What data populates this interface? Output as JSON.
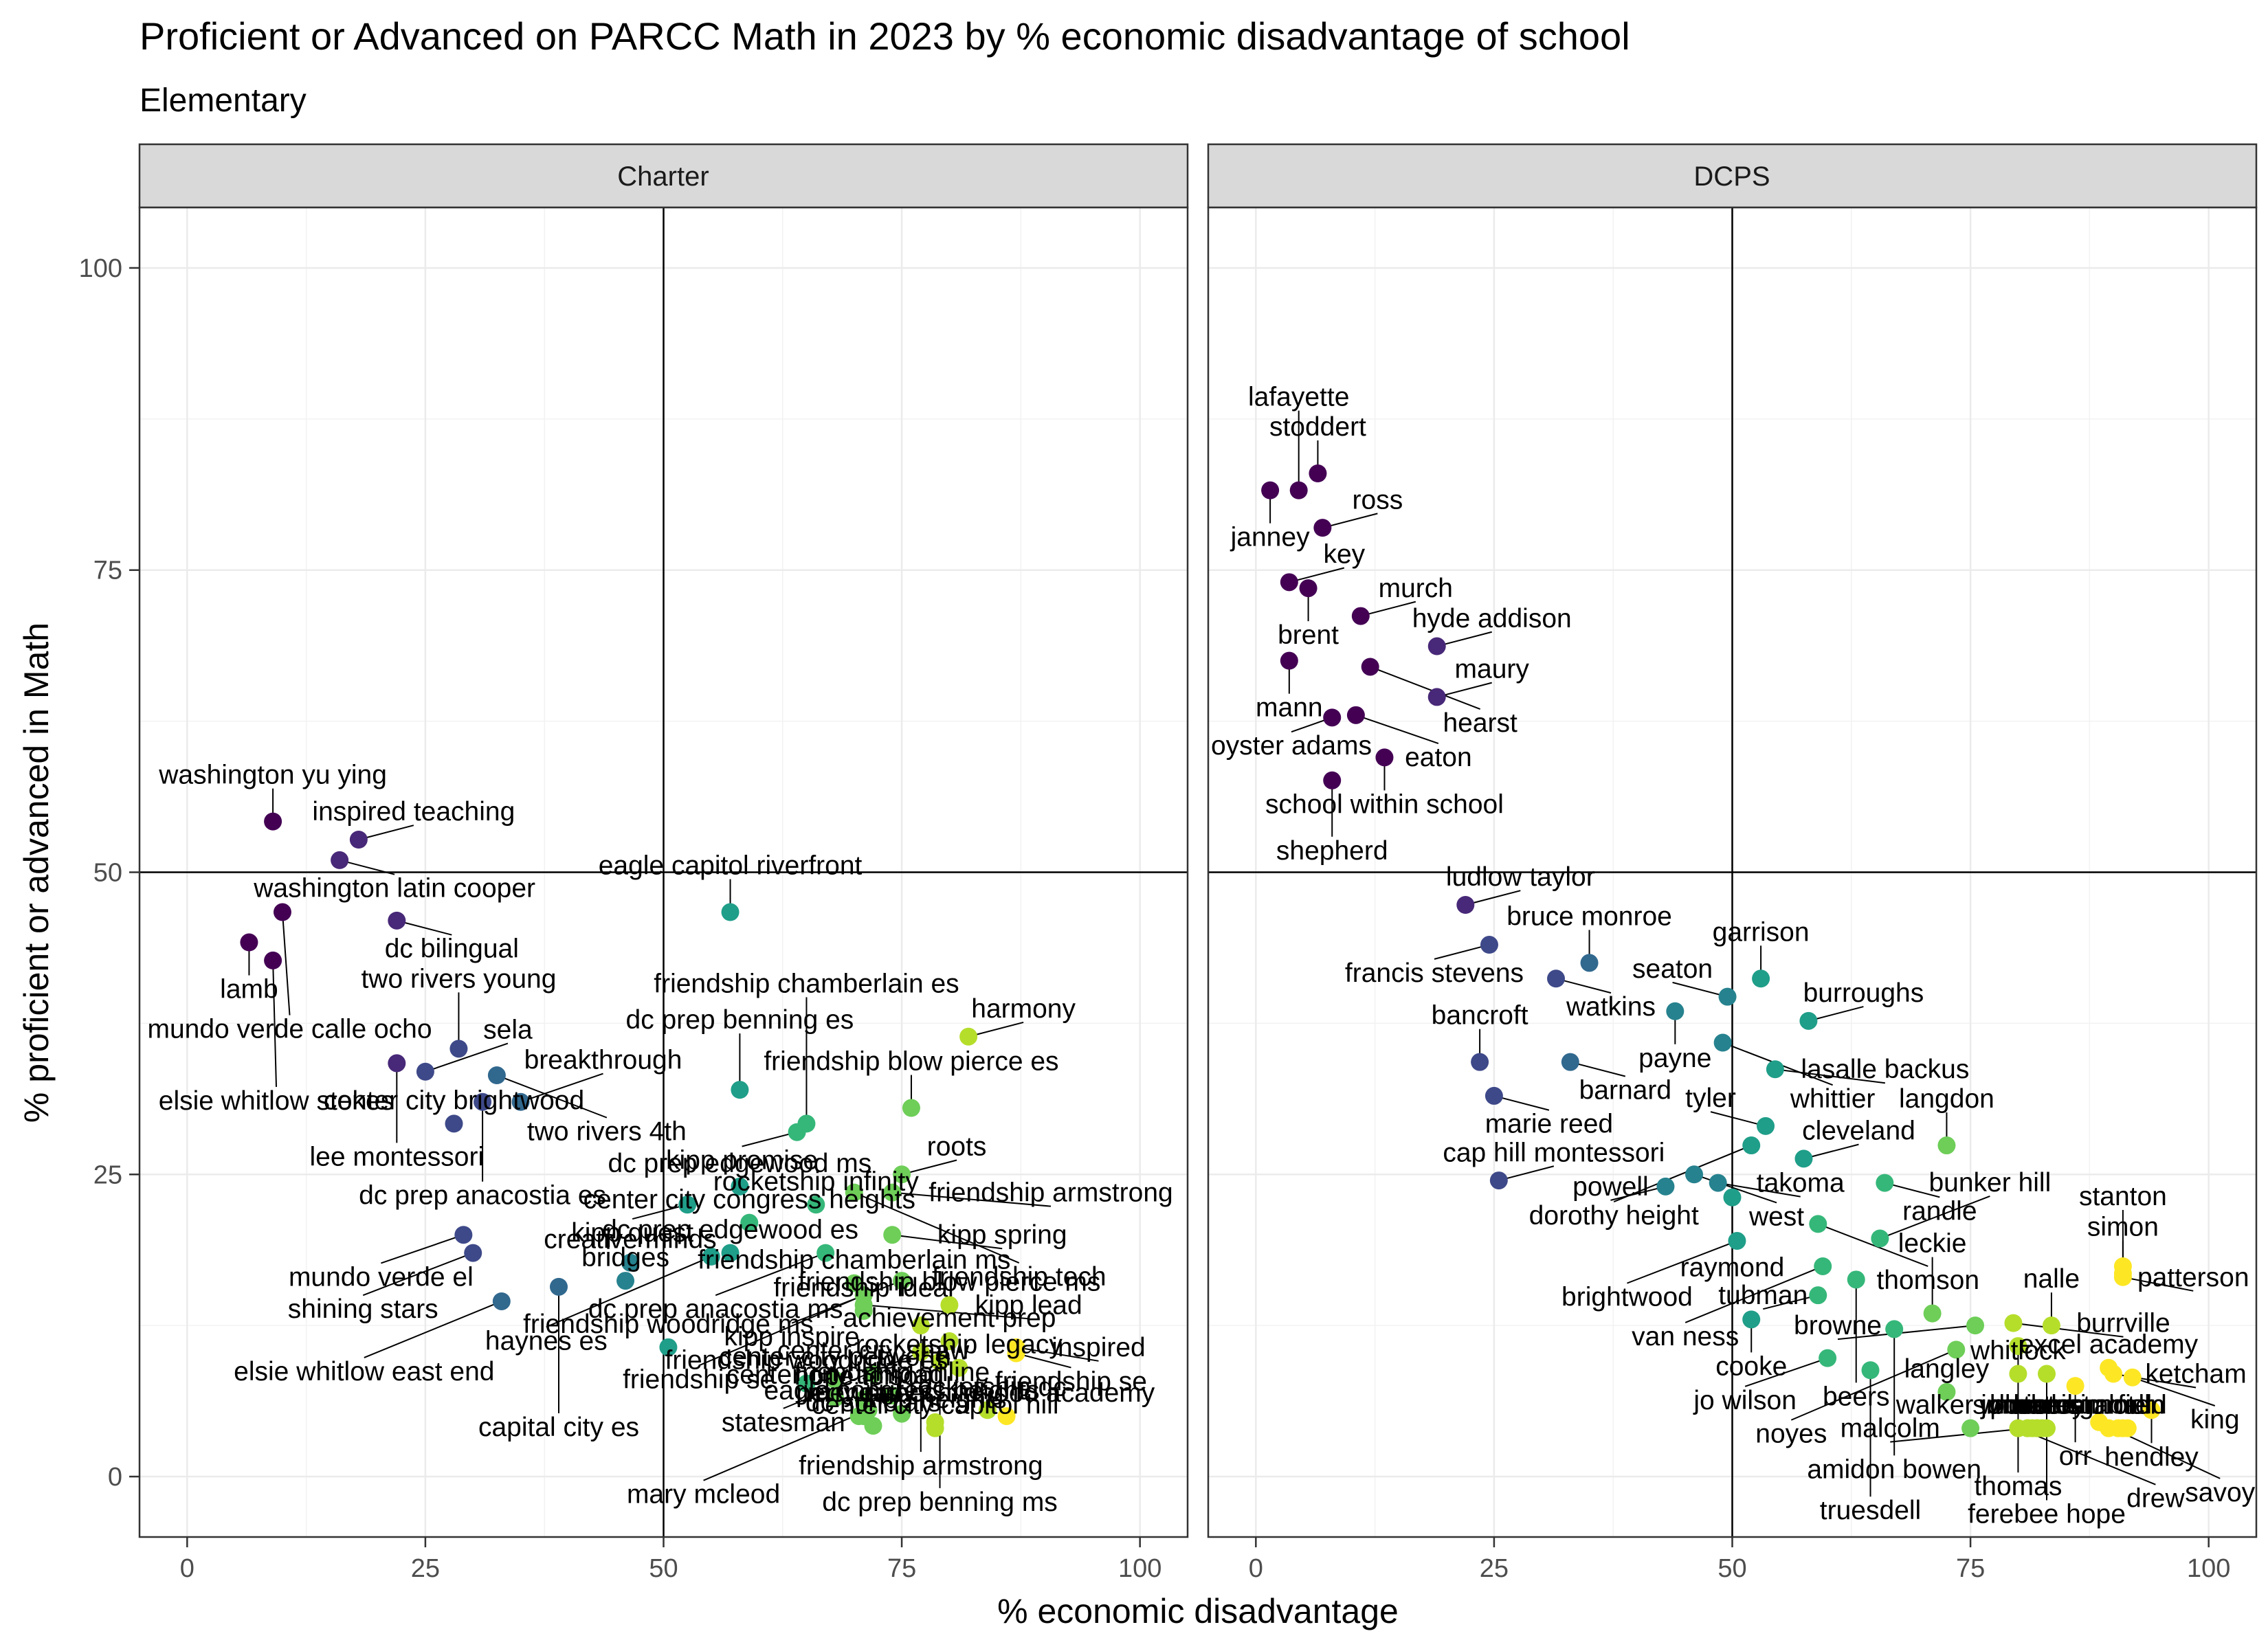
{
  "chart_data": {
    "type": "scatter",
    "title": "Proficient or Advanced on PARCC Math in 2023 by % economic disadvantage of school",
    "subtitle": "Elementary",
    "xlabel": "% economic disadvantage",
    "ylabel": "% proficient or advanced in Math",
    "xlim": [
      -5,
      105
    ],
    "ylim": [
      -5,
      105
    ],
    "xticks": [
      0,
      25,
      50,
      75,
      100
    ],
    "yticks": [
      0,
      25,
      50,
      75,
      100
    ],
    "reference_lines": {
      "x": 50,
      "y": 50
    },
    "grid": true,
    "color_scale": "viridis (by % economic disadvantage)",
    "facets": [
      {
        "name": "Charter",
        "points": [
          {
            "label": "washington yu ying",
            "x": 9,
            "y": 54.2
          },
          {
            "label": "inspired teaching",
            "x": 18,
            "y": 52.7
          },
          {
            "label": "washington latin cooper",
            "x": 16,
            "y": 51
          },
          {
            "label": "dc bilingual",
            "x": 22,
            "y": 46
          },
          {
            "label": "lamb",
            "x": 6.5,
            "y": 44.2
          },
          {
            "label": "mundo verde calle ocho",
            "x": 10,
            "y": 46.7
          },
          {
            "label": "elsie whitlow stokes",
            "x": 9,
            "y": 42.7
          },
          {
            "label": "two rivers young",
            "x": 28.5,
            "y": 35.4
          },
          {
            "label": "lee montessori",
            "x": 22,
            "y": 34.2
          },
          {
            "label": "sela",
            "x": 25,
            "y": 33.5
          },
          {
            "label": "two rivers 4th",
            "x": 32.5,
            "y": 33.2
          },
          {
            "label": "dc prep anacostia es",
            "x": 31,
            "y": 31
          },
          {
            "label": "breakthrough",
            "x": 35,
            "y": 31
          },
          {
            "label": "center city brightwood",
            "x": 28,
            "y": 29.2
          },
          {
            "label": "eagle capitol riverfront",
            "x": 57,
            "y": 46.7
          },
          {
            "label": "dc prep benning es",
            "x": 58,
            "y": 32
          },
          {
            "label": "friendship chamberlain es",
            "x": 65,
            "y": 29.2
          },
          {
            "label": "harmony",
            "x": 82,
            "y": 36.4
          },
          {
            "label": "friendship blow pierce es",
            "x": 76,
            "y": 30.5
          },
          {
            "label": "kipp promise",
            "x": 64,
            "y": 28.5
          },
          {
            "label": "roots",
            "x": 75,
            "y": 25
          },
          {
            "label": "dc prep edgewood ms",
            "x": 58,
            "y": 24
          },
          {
            "label": "friendship tech",
            "x": 70,
            "y": 23.5
          },
          {
            "label": "friendship armstrong",
            "x": 74,
            "y": 23.5
          },
          {
            "label": "rocketship infinity",
            "x": 66,
            "y": 22.5
          },
          {
            "label": "kipp spring",
            "x": 74,
            "y": 20
          },
          {
            "label": "center city congress heights",
            "x": 59,
            "y": 21
          },
          {
            "label": "dc prep anacostia ms",
            "x": 67,
            "y": 18.5
          },
          {
            "label": "kipp inspire",
            "x": 75,
            "y": 16.2
          },
          {
            "label": "kipp quest",
            "x": 52.5,
            "y": 22.5
          },
          {
            "label": "friendship se",
            "x": 71,
            "y": 15
          },
          {
            "label": "mundo verde el",
            "x": 29,
            "y": 20
          },
          {
            "label": "haynes es",
            "x": 55,
            "y": 18.2
          },
          {
            "label": "friendship chamberlain ms",
            "x": 70,
            "y": 16
          },
          {
            "label": "shining stars",
            "x": 30,
            "y": 18.5
          },
          {
            "label": "dc prep edgewood es",
            "x": 57,
            "y": 18.5
          },
          {
            "label": "creative minds",
            "x": 46.5,
            "y": 17.7
          },
          {
            "label": "friendship armstrong",
            "x": 77,
            "y": 12.5
          },
          {
            "label": "capital city es",
            "x": 39,
            "y": 15.7
          },
          {
            "label": "bridges",
            "x": 46,
            "y": 16.2
          },
          {
            "label": "kipp lead",
            "x": 71,
            "y": 14.2
          },
          {
            "label": "friendship ideal",
            "x": 71,
            "y": 13.7
          },
          {
            "label": "friendship blow pierce ms",
            "x": 80,
            "y": 14.2
          },
          {
            "label": "elsie whitlow east end",
            "x": 33,
            "y": 14.5
          },
          {
            "label": "dc prep benning ms",
            "x": 79,
            "y": 9.5
          },
          {
            "label": "achievement prep",
            "x": 80,
            "y": 11.2
          },
          {
            "label": "friendship woodridge ms",
            "x": 50.5,
            "y": 10.7
          },
          {
            "label": "statesman",
            "x": 77,
            "y": 10.3
          },
          {
            "label": "friendship woodridge es",
            "x": 65,
            "y": 7.7
          },
          {
            "label": "center city petworth",
            "x": 68,
            "y": 8
          },
          {
            "label": "center city shaw",
            "x": 72,
            "y": 8.5
          },
          {
            "label": "friendship se",
            "x": 87,
            "y": 10.2
          },
          {
            "label": "inspired",
            "x": 87,
            "y": 10.7
          },
          {
            "label": "mary mcleod",
            "x": 71.5,
            "y": 5.5
          },
          {
            "label": "center city trinidad",
            "x": 68,
            "y": 6.5
          },
          {
            "label": "perry street",
            "x": 71,
            "y": 5
          },
          {
            "label": "rocketship legacy",
            "x": 81,
            "y": 9
          },
          {
            "label": "rocketship dc",
            "x": 84,
            "y": 5.5
          },
          {
            "label": "meridian",
            "x": 70.5,
            "y": 5
          },
          {
            "label": "dc scholars",
            "x": 72,
            "y": 4.2
          },
          {
            "label": "eagle congress heights",
            "x": 75,
            "y": 5.2
          },
          {
            "label": "center city capitol hill",
            "x": 78.5,
            "y": 4
          },
          {
            "label": "early childhood academy",
            "x": 86,
            "y": 5
          },
          {
            "label": "friendship online",
            "x": 74,
            "y": 6.7
          },
          {
            "label": "hope tolson",
            "x": 71,
            "y": 6.4
          },
          {
            "label": "kipp heights",
            "x": 78.5,
            "y": 4.5
          }
        ]
      },
      {
        "name": "DCPS",
        "points": [
          {
            "label": "stoddert",
            "x": 6.5,
            "y": 83
          },
          {
            "label": "janney",
            "x": 1.5,
            "y": 81.6
          },
          {
            "label": "lafayette",
            "x": 4.5,
            "y": 81.6
          },
          {
            "label": "ross",
            "x": 7,
            "y": 78.5
          },
          {
            "label": "key",
            "x": 3.5,
            "y": 74
          },
          {
            "label": "brent",
            "x": 5.5,
            "y": 73.5
          },
          {
            "label": "murch",
            "x": 11,
            "y": 71.2
          },
          {
            "label": "hyde addison",
            "x": 19,
            "y": 68.7
          },
          {
            "label": "mann",
            "x": 3.5,
            "y": 67.5
          },
          {
            "label": "hearst",
            "x": 12,
            "y": 67
          },
          {
            "label": "maury",
            "x": 19,
            "y": 64.5
          },
          {
            "label": "oyster adams",
            "x": 8,
            "y": 62.8
          },
          {
            "label": "eaton",
            "x": 10.5,
            "y": 63
          },
          {
            "label": "school within school",
            "x": 13.5,
            "y": 59.5
          },
          {
            "label": "shepherd",
            "x": 8,
            "y": 57.6
          },
          {
            "label": "ludlow taylor",
            "x": 22,
            "y": 47.3
          },
          {
            "label": "francis stevens",
            "x": 24.5,
            "y": 44
          },
          {
            "label": "bruce monroe",
            "x": 35,
            "y": 42.5
          },
          {
            "label": "garrison",
            "x": 53,
            "y": 41.2
          },
          {
            "label": "watkins",
            "x": 31.5,
            "y": 41.2
          },
          {
            "label": "seaton",
            "x": 49.5,
            "y": 39.7
          },
          {
            "label": "burroughs",
            "x": 58,
            "y": 37.7
          },
          {
            "label": "payne",
            "x": 44,
            "y": 38.5
          },
          {
            "label": "whittier",
            "x": 49,
            "y": 35.9
          },
          {
            "label": "bancroft",
            "x": 23.5,
            "y": 34.3
          },
          {
            "label": "barnard",
            "x": 33,
            "y": 34.3
          },
          {
            "label": "lasalle backus",
            "x": 54.5,
            "y": 33.7
          },
          {
            "label": "marie reed",
            "x": 25,
            "y": 31.5
          },
          {
            "label": "tyler",
            "x": 53.5,
            "y": 29
          },
          {
            "label": "dorothy height",
            "x": 52,
            "y": 27.4
          },
          {
            "label": "langdon",
            "x": 72.5,
            "y": 27.4
          },
          {
            "label": "cleveland",
            "x": 57.5,
            "y": 26.3
          },
          {
            "label": "cap hill montessori",
            "x": 25.5,
            "y": 24.5
          },
          {
            "label": "west",
            "x": 46,
            "y": 25
          },
          {
            "label": "powell",
            "x": 43,
            "y": 24
          },
          {
            "label": "takoma",
            "x": 48.5,
            "y": 24.3
          },
          {
            "label": "raymond",
            "x": 50,
            "y": 23.1
          },
          {
            "label": "randle",
            "x": 66,
            "y": 24.3
          },
          {
            "label": "brightwood",
            "x": 50.5,
            "y": 19.5
          },
          {
            "label": "thomson",
            "x": 59,
            "y": 20.9
          },
          {
            "label": "bunker hill",
            "x": 65.5,
            "y": 19.7
          },
          {
            "label": "van ness",
            "x": 59.5,
            "y": 17.4
          },
          {
            "label": "tubman",
            "x": 59,
            "y": 15
          },
          {
            "label": "beers",
            "x": 63,
            "y": 16.3
          },
          {
            "label": "leckie",
            "x": 71,
            "y": 13.5
          },
          {
            "label": "burrville",
            "x": 79.5,
            "y": 12.7
          },
          {
            "label": "simon",
            "x": 91,
            "y": 16.8
          },
          {
            "label": "stanton",
            "x": 91,
            "y": 17.4
          },
          {
            "label": "patterson",
            "x": 91,
            "y": 16.5
          },
          {
            "label": "nalle",
            "x": 83.5,
            "y": 12.5
          },
          {
            "label": "cooke",
            "x": 52,
            "y": 13
          },
          {
            "label": "amidon bowen",
            "x": 67,
            "y": 12.2
          },
          {
            "label": "browne",
            "x": 75.5,
            "y": 12.5
          },
          {
            "label": "orr",
            "x": 86,
            "y": 7.5
          },
          {
            "label": "ketcham",
            "x": 90,
            "y": 8.5
          },
          {
            "label": "noyes",
            "x": 73.5,
            "y": 10.5
          },
          {
            "label": "thomas",
            "x": 80,
            "y": 10.8
          },
          {
            "label": "ferebee hope",
            "x": 83,
            "y": 8.5
          },
          {
            "label": "excel academy",
            "x": 89.5,
            "y": 9
          },
          {
            "label": "king",
            "x": 92,
            "y": 8.2
          },
          {
            "label": "jo wilson",
            "x": 60,
            "y": 9.8
          },
          {
            "label": "truesdell",
            "x": 64.5,
            "y": 8.8
          },
          {
            "label": "hendley",
            "x": 94,
            "y": 5.5
          },
          {
            "label": "langley",
            "x": 72.5,
            "y": 7
          },
          {
            "label": "whitlock",
            "x": 80,
            "y": 8.5
          },
          {
            "label": "malcolm",
            "x": 81,
            "y": 4
          },
          {
            "label": "savoy",
            "x": 88.5,
            "y": 4.5
          },
          {
            "label": "miner",
            "x": 82,
            "y": 4
          },
          {
            "label": "plummer",
            "x": 82.5,
            "y": 4
          },
          {
            "label": "moten",
            "x": 91.5,
            "y": 4
          },
          {
            "label": "smothers",
            "x": 81,
            "y": 4
          },
          {
            "label": "wheatley",
            "x": 81.5,
            "y": 4
          },
          {
            "label": "harris",
            "x": 83,
            "y": 4
          },
          {
            "label": "kimball",
            "x": 89.5,
            "y": 4
          },
          {
            "label": "drew",
            "x": 80,
            "y": 4
          },
          {
            "label": "houston",
            "x": 82,
            "y": 4
          },
          {
            "label": "walker jones",
            "x": 75,
            "y": 4
          },
          {
            "label": "turner",
            "x": 90.5,
            "y": 4
          },
          {
            "label": "garfield",
            "x": 91,
            "y": 4
          }
        ]
      }
    ]
  }
}
